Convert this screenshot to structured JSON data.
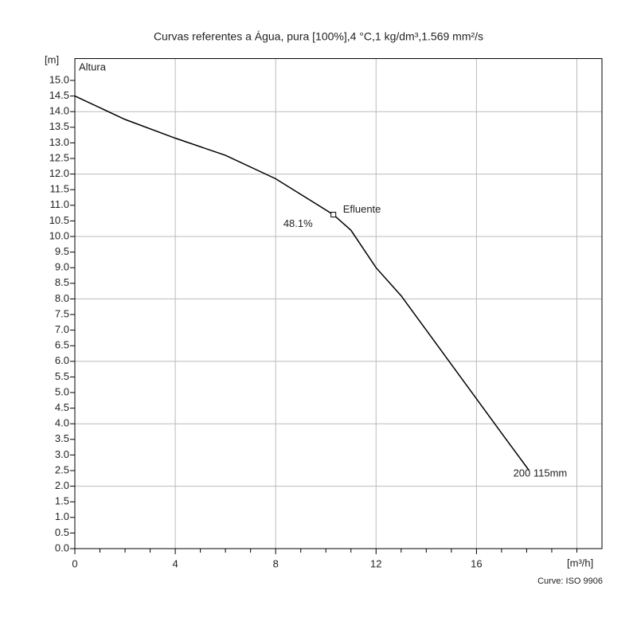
{
  "chart_data": {
    "type": "line",
    "title": "Curvas referentes a  Água, pura [100%],4 °C,1 kg/dm³,1.569 mm²/s",
    "y_unit_label": "[m]",
    "y_axis_title": "Altura",
    "x_unit_label": "[m³/h]",
    "note": "Curve: ISO 9906",
    "xlim": [
      0,
      21
    ],
    "ylim": [
      0,
      15.7
    ],
    "xticks": [
      0,
      4,
      8,
      12,
      16
    ],
    "xminorticks": [
      1,
      2,
      3,
      5,
      6,
      7,
      9,
      10,
      11,
      13,
      14,
      15,
      17,
      18,
      19,
      20
    ],
    "x_gridlines": [
      4,
      8,
      12,
      16,
      20
    ],
    "y_gridlines": [
      2,
      4,
      6,
      8,
      10,
      12,
      14
    ],
    "yticks": [
      {
        "value": 0,
        "label": "0.0"
      },
      0.5,
      {
        "value": 1,
        "label": "1.0"
      },
      1.5,
      {
        "value": 2,
        "label": "2.0"
      },
      2.5,
      {
        "value": 3,
        "label": "3.0"
      },
      3.5,
      {
        "value": 4,
        "label": "4.0"
      },
      4.5,
      {
        "value": 5,
        "label": "5.0"
      },
      5.5,
      {
        "value": 6,
        "label": "6.0"
      },
      6.5,
      {
        "value": 7,
        "label": "7.0"
      },
      7.5,
      {
        "value": 8,
        "label": "8.0"
      },
      8.5,
      {
        "value": 9,
        "label": "9.0"
      },
      9.5,
      {
        "value": 10,
        "label": "10.0"
      },
      10.5,
      {
        "value": 11,
        "label": "11.0"
      },
      11.5,
      {
        "value": 12,
        "label": "12.0"
      },
      12.5,
      {
        "value": 13,
        "label": "13.0"
      },
      13.5,
      {
        "value": 14,
        "label": "14.0"
      },
      14.5,
      {
        "value": 15,
        "label": "15.0"
      }
    ],
    "series": [
      {
        "name": "200 115mm",
        "color": "#000000",
        "x": [
          0,
          2,
          4,
          6,
          8,
          9,
          10.3,
          11,
          12,
          13,
          14,
          15,
          16,
          17,
          18.1
        ],
        "values": [
          14.5,
          13.75,
          13.15,
          12.6,
          11.85,
          11.35,
          10.7,
          10.2,
          9.0,
          8.1,
          7.0,
          5.9,
          4.8,
          3.7,
          2.5
        ]
      }
    ],
    "operating_point": {
      "x": 10.3,
      "y": 10.7,
      "label": "Efluente",
      "efficiency_label": "48.1%"
    }
  }
}
